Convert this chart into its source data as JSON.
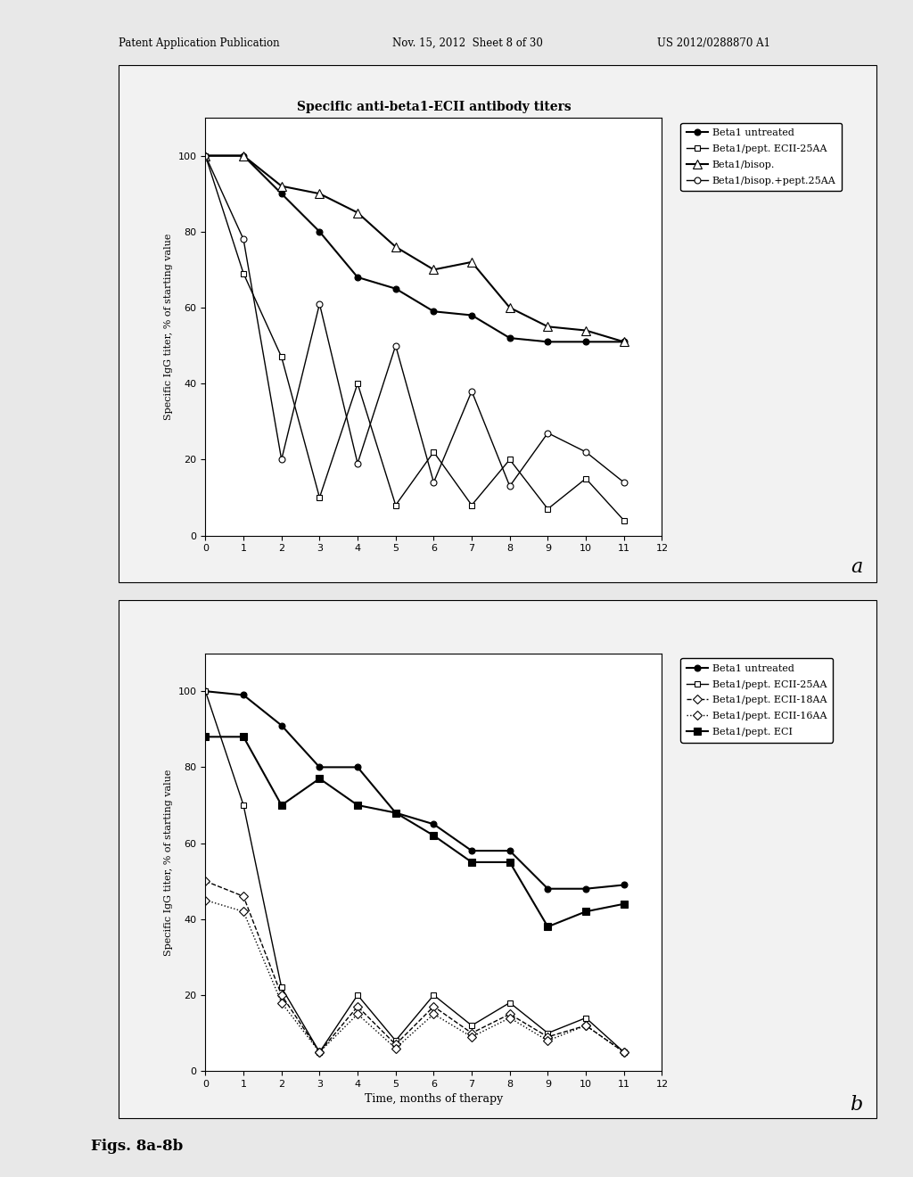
{
  "title_a": "Specific anti-beta1-ECII antibody titers",
  "label_a": "a",
  "label_b": "b",
  "xlabel_b": "Time, months of therapy",
  "ylabel": "Specific IgG titer, % of starting value",
  "xlim": [
    0,
    12
  ],
  "ylim": [
    0,
    110
  ],
  "xticks": [
    0,
    1,
    2,
    3,
    4,
    5,
    6,
    7,
    8,
    9,
    10,
    11,
    12
  ],
  "series_a": {
    "beta1_untreated": {
      "x": [
        0,
        1,
        2,
        3,
        4,
        5,
        6,
        7,
        8,
        9,
        10,
        11
      ],
      "y": [
        100,
        100,
        90,
        80,
        68,
        65,
        59,
        58,
        52,
        51,
        51,
        51
      ],
      "label": "Beta1 untreated",
      "color": "black",
      "marker": "o",
      "markerfacecolor": "black",
      "linestyle": "-",
      "linewidth": 1.5,
      "markersize": 5
    },
    "beta1_pept_25aa": {
      "x": [
        0,
        1,
        2,
        3,
        4,
        5,
        6,
        7,
        8,
        9,
        10,
        11
      ],
      "y": [
        100,
        69,
        47,
        10,
        40,
        8,
        22,
        8,
        20,
        7,
        15,
        4
      ],
      "label": "Beta1/pept. ECII-25AA",
      "color": "black",
      "marker": "s",
      "markerfacecolor": "white",
      "linestyle": "-",
      "linewidth": 1.0,
      "markersize": 5
    },
    "beta1_bisop": {
      "x": [
        0,
        1,
        2,
        3,
        4,
        5,
        6,
        7,
        8,
        9,
        10,
        11
      ],
      "y": [
        100,
        100,
        92,
        90,
        85,
        76,
        70,
        72,
        60,
        55,
        54,
        51
      ],
      "label": "Beta1/bisop.",
      "color": "black",
      "marker": "^",
      "markerfacecolor": "white",
      "linestyle": "-",
      "linewidth": 1.5,
      "markersize": 7
    },
    "beta1_bisop_pept25aa": {
      "x": [
        0,
        1,
        2,
        3,
        4,
        5,
        6,
        7,
        8,
        9,
        10,
        11
      ],
      "y": [
        100,
        78,
        20,
        61,
        19,
        50,
        14,
        38,
        13,
        27,
        22,
        14
      ],
      "label": "Beta1/bisop.+pept.25AA",
      "color": "black",
      "marker": "o",
      "markerfacecolor": "white",
      "linestyle": "-",
      "linewidth": 1.0,
      "markersize": 5
    }
  },
  "series_b": {
    "beta1_untreated": {
      "x": [
        0,
        1,
        2,
        3,
        4,
        5,
        6,
        7,
        8,
        9,
        10,
        11
      ],
      "y": [
        100,
        99,
        91,
        80,
        80,
        68,
        65,
        58,
        58,
        48,
        48,
        49
      ],
      "label": "Beta1 untreated",
      "color": "black",
      "marker": "o",
      "markerfacecolor": "black",
      "linestyle": "-",
      "linewidth": 1.5,
      "markersize": 5
    },
    "beta1_pept_25aa": {
      "x": [
        0,
        1,
        2,
        3,
        4,
        5,
        6,
        7,
        8,
        9,
        10,
        11
      ],
      "y": [
        100,
        70,
        22,
        5,
        20,
        8,
        20,
        12,
        18,
        10,
        14,
        5
      ],
      "label": "Beta1/pept. ECII-25AA",
      "color": "black",
      "marker": "s",
      "markerfacecolor": "white",
      "linestyle": "-",
      "linewidth": 1.0,
      "markersize": 5
    },
    "beta1_pept_18aa": {
      "x": [
        0,
        1,
        2,
        3,
        4,
        5,
        6,
        7,
        8,
        9,
        10,
        11
      ],
      "y": [
        50,
        46,
        20,
        5,
        17,
        7,
        17,
        10,
        15,
        9,
        12,
        5
      ],
      "label": "Beta1/pept. ECII-18AA",
      "color": "black",
      "marker": "D",
      "markerfacecolor": "white",
      "linestyle": "--",
      "linewidth": 1.0,
      "markersize": 5
    },
    "beta1_pept_16aa": {
      "x": [
        0,
        1,
        2,
        3,
        4,
        5,
        6,
        7,
        8,
        9,
        10,
        11
      ],
      "y": [
        45,
        42,
        18,
        5,
        15,
        6,
        15,
        9,
        14,
        8,
        12,
        5
      ],
      "label": "Beta1/pept. ECII-16AA",
      "color": "black",
      "marker": "D",
      "markerfacecolor": "white",
      "linestyle": "dotted",
      "linewidth": 1.0,
      "markersize": 5
    },
    "beta1_pept_eci": {
      "x": [
        0,
        1,
        2,
        3,
        4,
        5,
        6,
        7,
        8,
        9,
        10,
        11
      ],
      "y": [
        88,
        88,
        70,
        77,
        70,
        68,
        62,
        55,
        55,
        38,
        42,
        44
      ],
      "label": "Beta1/pept. ECI",
      "color": "black",
      "marker": "s",
      "markerfacecolor": "black",
      "linestyle": "-",
      "linewidth": 1.5,
      "markersize": 6
    }
  },
  "bg_color": "#e8e8e8",
  "panel_bg_color": "#f2f2f2",
  "plot_bg_color": "white",
  "header_text1": "Patent Application Publication",
  "header_text2": "Nov. 15, 2012  Sheet 8 of 30",
  "header_text3": "US 2012/0288870 A1",
  "footer_text": "Figs. 8a-8b"
}
